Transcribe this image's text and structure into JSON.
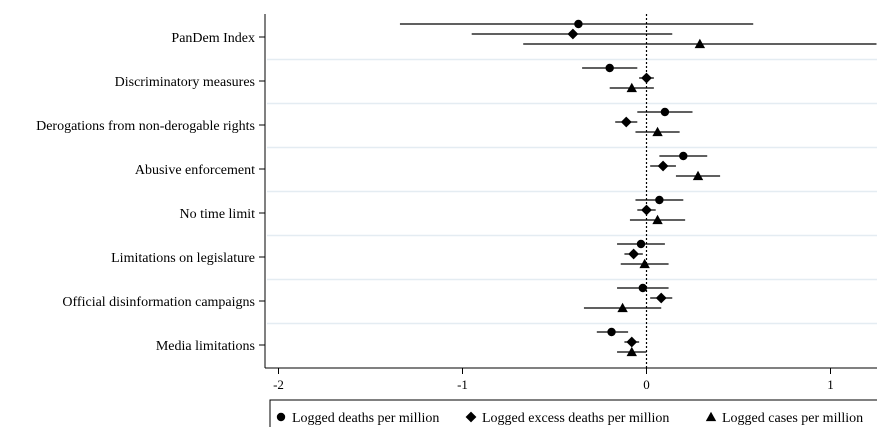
{
  "chart_data": {
    "type": "scatter",
    "subtype": "coefficient-plot",
    "title": "",
    "xlabel": "",
    "ylabel": "",
    "xlim": [
      -2.05,
      1.25
    ],
    "xticks": [
      -2,
      -1,
      0,
      1
    ],
    "xtick_labels": [
      "-2",
      "-1",
      "0",
      "1"
    ],
    "reference_line": 0,
    "grid": "horizontal",
    "legend_position": "bottom",
    "categories": [
      "PanDem Index",
      "Discriminatory measures",
      "Derogations from non-derogable rights",
      "Abusive enforcement",
      "No time limit",
      "Limitations on legislature",
      "Official disinformation campaigns",
      "Media limitations"
    ],
    "series": [
      {
        "name": "Logged deaths per million",
        "marker": "circle",
        "estimates": [
          -0.37,
          -0.2,
          0.1,
          0.2,
          0.07,
          -0.03,
          -0.02,
          -0.19
        ],
        "ci_low": [
          -1.34,
          -0.35,
          -0.05,
          0.07,
          -0.06,
          -0.16,
          -0.16,
          -0.27
        ],
        "ci_high": [
          0.58,
          -0.05,
          0.25,
          0.33,
          0.2,
          0.1,
          0.12,
          -0.1
        ]
      },
      {
        "name": "Logged excess deaths per million",
        "marker": "diamond",
        "estimates": [
          -0.4,
          0.0,
          -0.11,
          0.09,
          0.0,
          -0.07,
          0.08,
          -0.08
        ],
        "ci_low": [
          -0.95,
          -0.04,
          -0.17,
          0.02,
          -0.05,
          -0.12,
          0.02,
          -0.12
        ],
        "ci_high": [
          0.14,
          0.04,
          -0.05,
          0.16,
          0.05,
          -0.02,
          0.14,
          -0.04
        ]
      },
      {
        "name": "Logged cases per million",
        "marker": "triangle",
        "estimates": [
          0.29,
          -0.08,
          0.06,
          0.28,
          0.06,
          -0.01,
          -0.13,
          -0.08
        ],
        "ci_low": [
          -0.67,
          -0.2,
          -0.06,
          0.16,
          -0.09,
          -0.14,
          -0.34,
          -0.16
        ],
        "ci_high": [
          1.25,
          0.04,
          0.18,
          0.4,
          0.21,
          0.12,
          0.08,
          0.0
        ]
      }
    ]
  }
}
